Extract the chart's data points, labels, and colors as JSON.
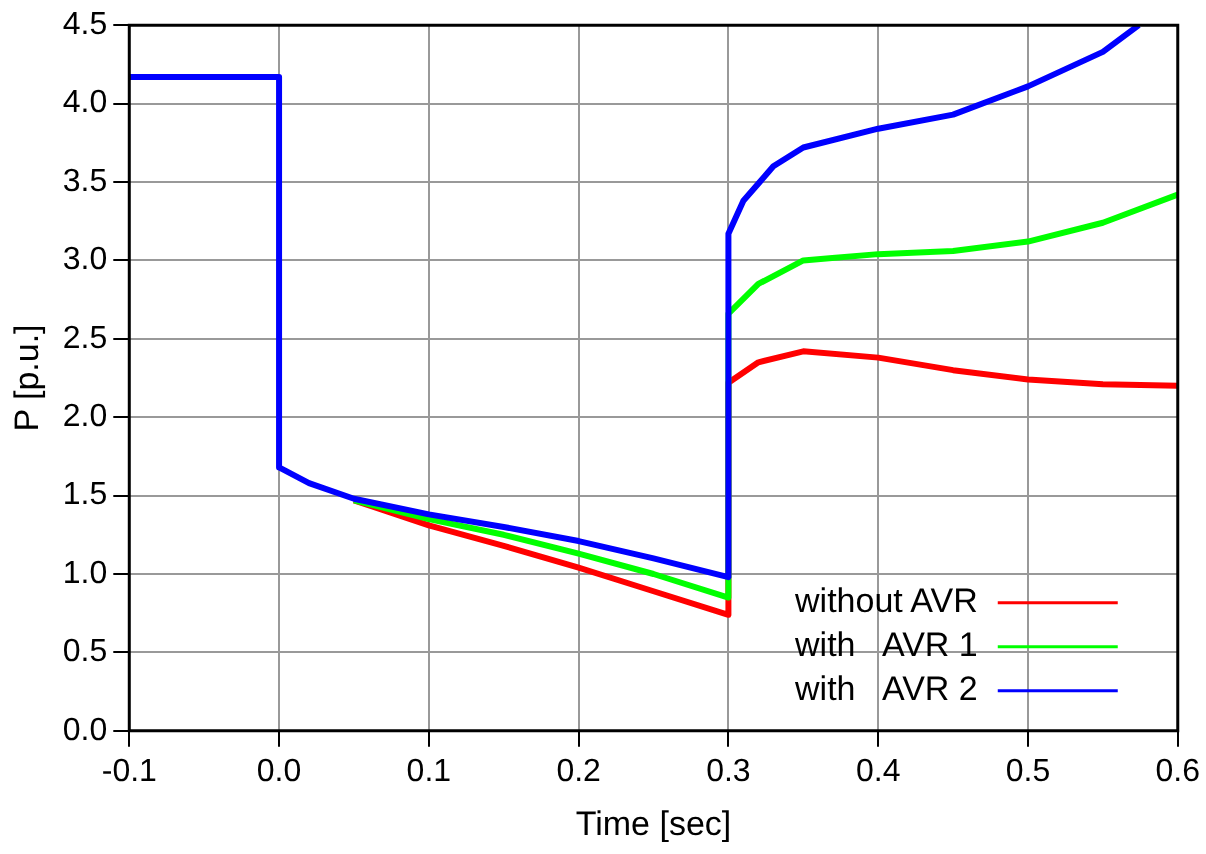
{
  "chart_data": {
    "type": "line",
    "xlabel": "Time [sec]",
    "ylabel": "P [p.u.]",
    "xlim": [
      -0.1,
      0.6
    ],
    "ylim": [
      0,
      4.5
    ],
    "xticks": [
      -0.1,
      {
        "value": 0,
        "label": "0.0"
      },
      0.1,
      0.2,
      0.3,
      0.4,
      0.5,
      0.6
    ],
    "yticks": [
      {
        "value": 0,
        "label": "0.0"
      },
      0.5,
      {
        "value": 1,
        "label": "1.0"
      },
      1.5,
      {
        "value": 2,
        "label": "2.0"
      },
      2.5,
      {
        "value": 3,
        "label": "3.0"
      },
      3.5,
      {
        "value": 4,
        "label": "4.0"
      },
      4.5
    ],
    "grid": true,
    "legend": "bottom right",
    "series": [
      {
        "name": "without AVR",
        "color": "#ff0000",
        "x": [
          0.05,
          0.1,
          0.15,
          0.2,
          0.25,
          0.3,
          0.3,
          0.32,
          0.35,
          0.4,
          0.45,
          0.5,
          0.55,
          0.6
        ],
        "values": [
          1.47,
          1.31,
          1.18,
          1.04,
          0.89,
          0.74,
          2.22,
          2.35,
          2.42,
          2.38,
          2.3,
          2.24,
          2.21,
          2.2
        ]
      },
      {
        "name": "with   AVR 1",
        "color": "#00ff00",
        "x": [
          0.05,
          0.1,
          0.15,
          0.2,
          0.25,
          0.3,
          0.3,
          0.32,
          0.35,
          0.4,
          0.45,
          0.5,
          0.55,
          0.6
        ],
        "values": [
          1.47,
          1.35,
          1.25,
          1.13,
          1.0,
          0.85,
          2.66,
          2.85,
          3.0,
          3.04,
          3.06,
          3.12,
          3.24,
          3.42
        ]
      },
      {
        "name": "with   AVR 2",
        "color": "#0000ff",
        "x": [
          -0.1,
          0,
          0,
          0.02,
          0.05,
          0.1,
          0.15,
          0.2,
          0.25,
          0.3,
          0.3,
          0.31,
          0.33,
          0.35,
          0.4,
          0.45,
          0.5,
          0.55,
          0.574
        ],
        "values": [
          4.17,
          4.17,
          1.68,
          1.58,
          1.48,
          1.38,
          1.3,
          1.21,
          1.1,
          0.98,
          3.17,
          3.38,
          3.6,
          3.72,
          3.84,
          3.93,
          4.11,
          4.33,
          4.5
        ]
      }
    ]
  }
}
